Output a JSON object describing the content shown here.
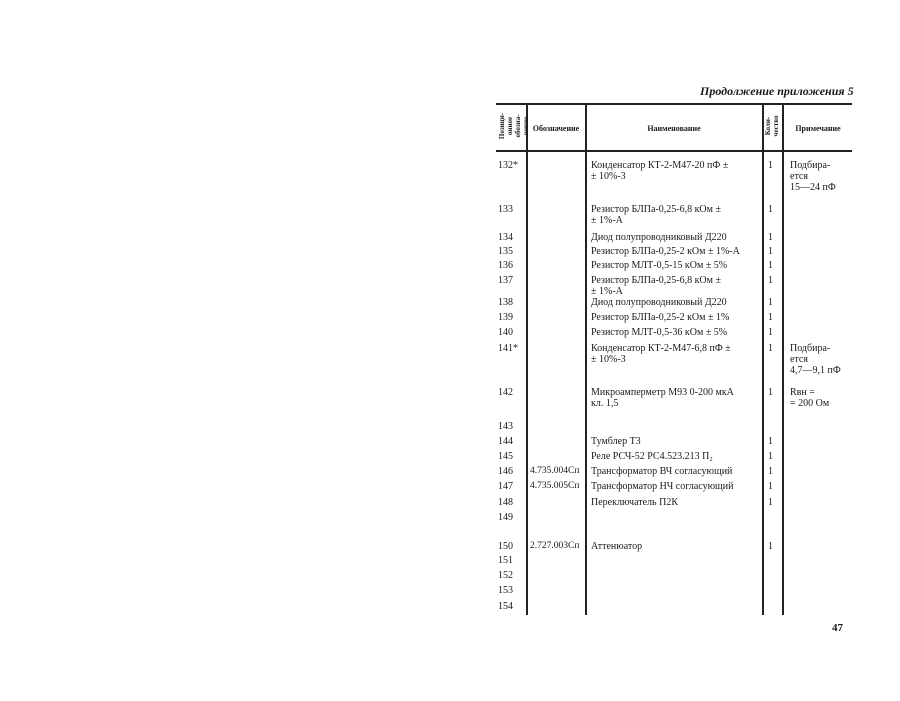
{
  "running_head": "Продолжение приложения 5",
  "page_number": "47",
  "table": {
    "headers": {
      "position": "Позици-\nонное\nобозна-\nчение",
      "designation": "Обозначение",
      "name": "Наименование",
      "quantity": "Коли-\nчество",
      "note": "Примечание"
    },
    "rows": [
      {
        "pos": "132*",
        "designation": "",
        "name": "Конденсатор КТ-2-М47-20 пФ ±\n   ± 10%-3",
        "qty": "1",
        "note": "Подбира-\n ется\n  15—24 пФ"
      },
      {
        "pos": "133",
        "designation": "",
        "name": "Резистор БЛПа-0,25-6,8 кОм ±\n   ± 1%-А",
        "qty": "1",
        "note": ""
      },
      {
        "pos": "134",
        "designation": "",
        "name": "Диод полупроводниковый Д220",
        "qty": "1",
        "note": ""
      },
      {
        "pos": "135",
        "designation": "",
        "name": "Резистор БЛПа-0,25-2 кОм ± 1%-А",
        "qty": "1",
        "note": ""
      },
      {
        "pos": "136",
        "designation": "",
        "name": "Резистор МЛТ-0,5-15 кОм ± 5%",
        "qty": "1",
        "note": ""
      },
      {
        "pos": "137",
        "designation": "",
        "name": "Резистор БЛПа-0,25-6,8 кОм ±\n   ± 1%-А",
        "qty": "1",
        "note": ""
      },
      {
        "pos": "138",
        "designation": "",
        "name": "Диод полупроводниковый Д220",
        "qty": "1",
        "note": ""
      },
      {
        "pos": "139",
        "designation": "",
        "name": "Резистор БЛПа-0,25-2 кОм ± 1%",
        "qty": "1",
        "note": ""
      },
      {
        "pos": "140",
        "designation": "",
        "name": "Резистор МЛТ-0,5-36 кОм ± 5%",
        "qty": "1",
        "note": ""
      },
      {
        "pos": "141*",
        "designation": "",
        "name": "Конденсатор КТ-2-М47-6,8 пФ ±\n   ± 10%-3",
        "qty": "1",
        "note": "Подбира-\n ется\n 4,7—9,1 пФ"
      },
      {
        "pos": "142",
        "designation": "",
        "name": "Микроамперметр М93 0-200 мкА\n   кл. 1,5",
        "qty": "1",
        "note": "Rвн =\n = 200 Ом"
      },
      {
        "pos": "143",
        "designation": "",
        "name": "",
        "qty": "",
        "note": ""
      },
      {
        "pos": "144",
        "designation": "",
        "name": "Тумблер Т3",
        "qty": "1",
        "note": ""
      },
      {
        "pos": "145",
        "designation": "",
        "name": "Реле РСЧ-52 РС4.523.213 П₂",
        "qty": "1",
        "note": ""
      },
      {
        "pos": "146",
        "designation": "4.735.004Сп",
        "name": "Трансформатор ВЧ согласующий",
        "qty": "1",
        "note": ""
      },
      {
        "pos": "147",
        "designation": "4.735.005Сп",
        "name": "Трансформатор НЧ согласующий",
        "qty": "1",
        "note": ""
      },
      {
        "pos": "148",
        "designation": "",
        "name": "Переключатель П2К",
        "qty": "1",
        "note": ""
      },
      {
        "pos": "149",
        "designation": "",
        "name": "",
        "qty": "",
        "note": ""
      },
      {
        "pos": "150",
        "designation": "2.727.003Сп",
        "name": "Аттенюатор",
        "qty": "1",
        "note": ""
      },
      {
        "pos": "151",
        "designation": "",
        "name": "",
        "qty": "",
        "note": ""
      },
      {
        "pos": "152",
        "designation": "",
        "name": "",
        "qty": "",
        "note": ""
      },
      {
        "pos": "153",
        "designation": "",
        "name": "",
        "qty": "",
        "note": ""
      },
      {
        "pos": "154",
        "designation": "",
        "name": "",
        "qty": "",
        "note": ""
      }
    ]
  }
}
